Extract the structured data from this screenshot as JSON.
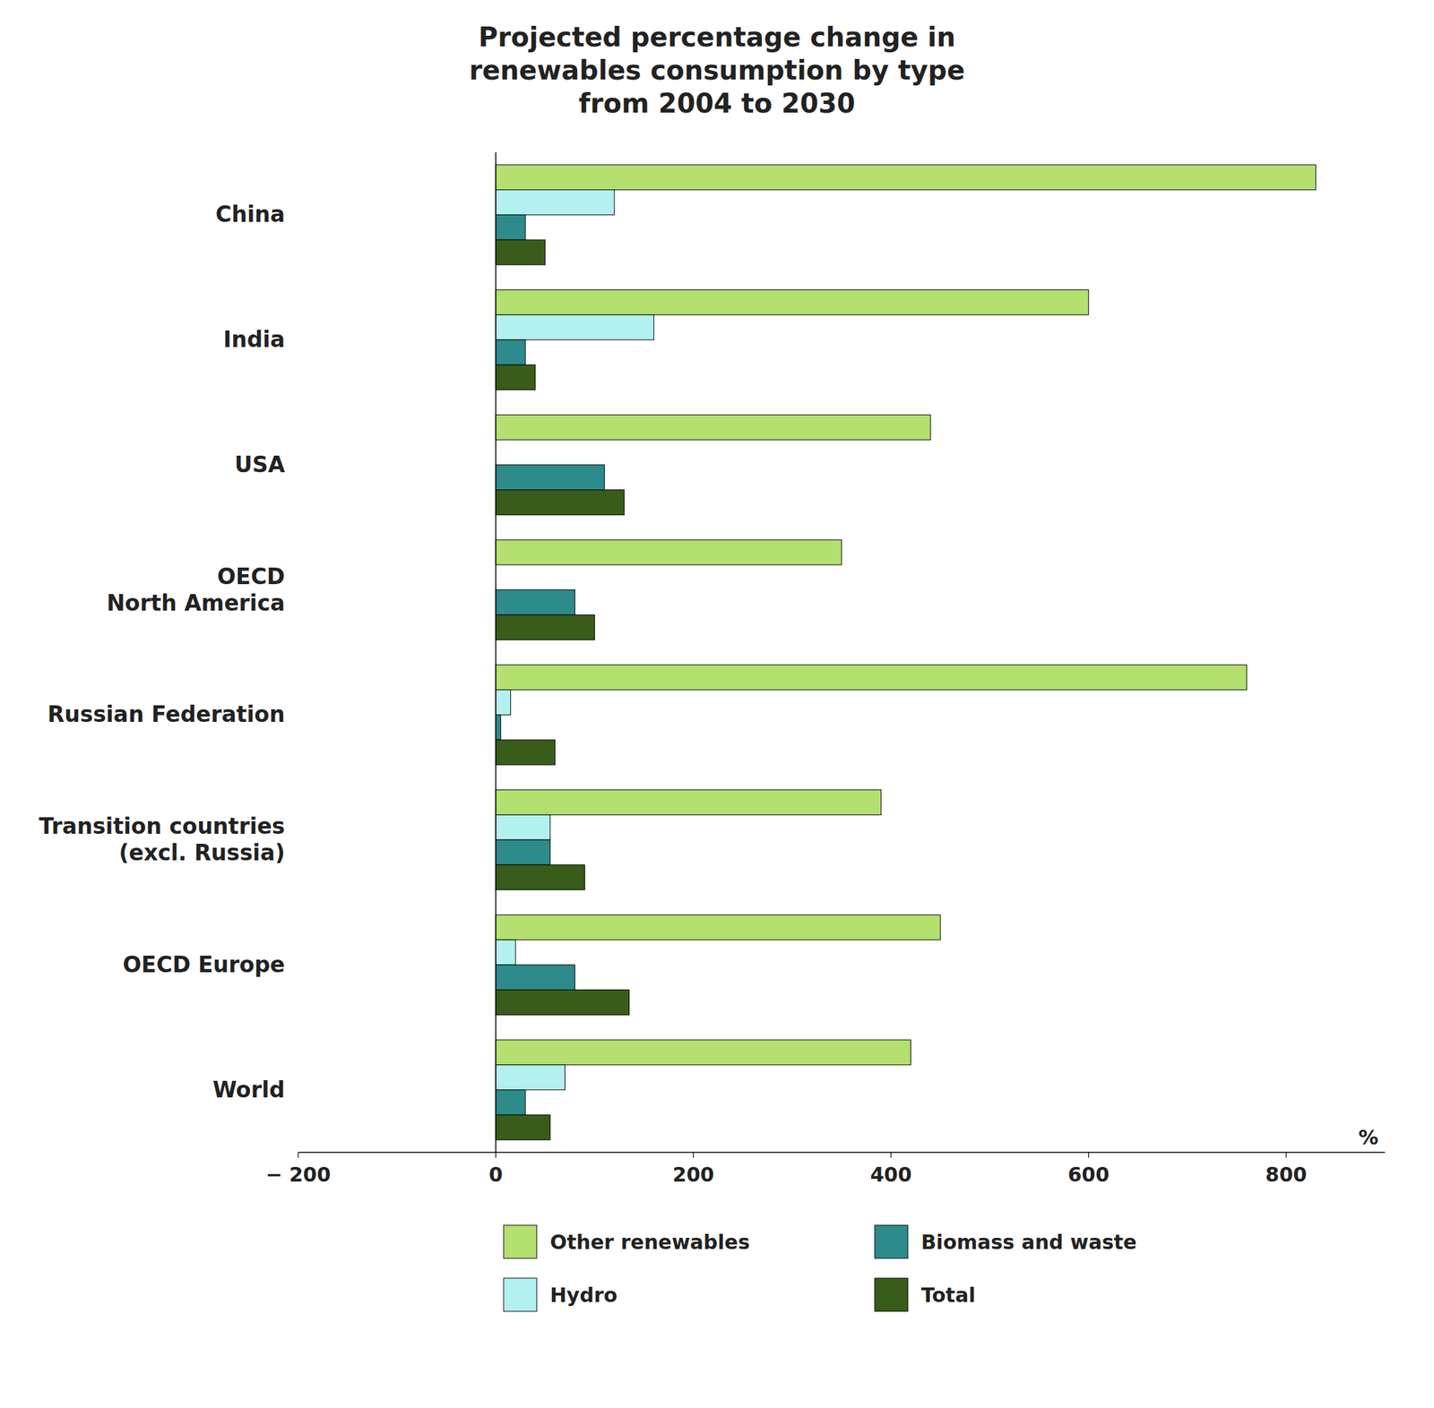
{
  "chart_data": {
    "type": "bar",
    "orientation": "horizontal",
    "title": "Projected percentage change in\nrenewables consumption by type\nfrom 2004 to 2030",
    "categories": [
      "World",
      "OECD Europe",
      "Transition countries\n(excl. Russia)",
      "Russian Federation",
      "OECD\nNorth America",
      "USA",
      "India",
      "China"
    ],
    "series": [
      {
        "name": "Other renewables",
        "color": "#b3e06e",
        "values": [
          420,
          450,
          390,
          760,
          350,
          440,
          600,
          830
        ]
      },
      {
        "name": "Hydro",
        "color": "#b3f0f0",
        "values": [
          70,
          20,
          55,
          15,
          0,
          0,
          160,
          120
        ]
      },
      {
        "name": "Biomass and waste",
        "color": "#2e8b8b",
        "values": [
          30,
          80,
          55,
          5,
          80,
          110,
          30,
          30
        ]
      },
      {
        "name": "Total",
        "color": "#3a5c1a",
        "values": [
          55,
          135,
          90,
          60,
          100,
          130,
          40,
          50
        ]
      }
    ],
    "xlabel": "%",
    "xlim": [
      -200,
      900
    ],
    "xticks": [
      {
        "value": -200,
        "label": "− 200"
      },
      0,
      200,
      400,
      600,
      800
    ],
    "grid": false,
    "legend": "bottom"
  }
}
